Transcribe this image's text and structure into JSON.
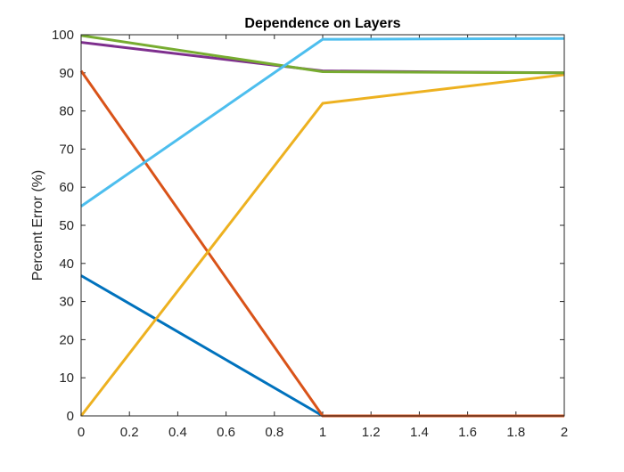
{
  "chart_data": {
    "type": "line",
    "title": "Dependence on Layers",
    "xlabel": "",
    "ylabel": "Percent Error (%)",
    "xlim": [
      0,
      2
    ],
    "ylim": [
      0,
      100
    ],
    "xticks": [
      0,
      0.2,
      0.4,
      0.6,
      0.8,
      1,
      1.2,
      1.4,
      1.6,
      1.8,
      2
    ],
    "xtick_labels": [
      "0",
      "0.2",
      "0.4",
      "0.6",
      "0.8",
      "1",
      "1.2",
      "1.4",
      "1.6",
      "1.8",
      "2"
    ],
    "yticks": [
      0,
      10,
      20,
      30,
      40,
      50,
      60,
      70,
      80,
      90,
      100
    ],
    "ytick_labels": [
      "0",
      "10",
      "20",
      "30",
      "40",
      "50",
      "60",
      "70",
      "80",
      "90",
      "100"
    ],
    "grid": false,
    "legend": "none",
    "x": [
      0,
      1,
      2
    ],
    "series": [
      {
        "color": "#0072BD",
        "values": [
          36.8,
          0.0,
          0.0
        ]
      },
      {
        "color": "#D95319",
        "values": [
          90.5,
          0.0,
          0.0
        ]
      },
      {
        "color": "#EDB120",
        "values": [
          0.0,
          82.0,
          89.5
        ]
      },
      {
        "color": "#7E2F8E",
        "values": [
          98.0,
          90.5,
          90.0
        ]
      },
      {
        "color": "#77AC30",
        "values": [
          99.8,
          90.3,
          90.0
        ]
      },
      {
        "color": "#4DBEEE",
        "values": [
          55.0,
          98.8,
          99.0
        ]
      }
    ]
  }
}
